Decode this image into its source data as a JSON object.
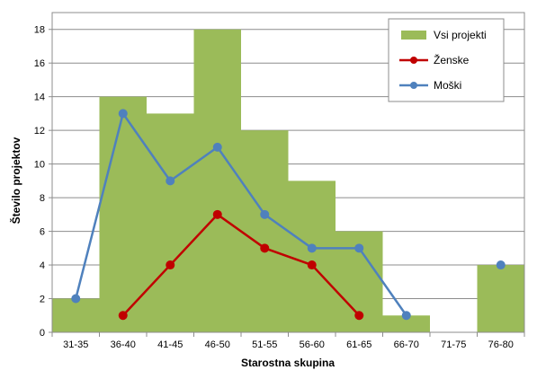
{
  "chart_data": {
    "type": "bar",
    "xlabel": "Starostna skupina",
    "ylabel": "Število projektov",
    "ylim": [
      0,
      19
    ],
    "yticks": [
      0,
      2,
      4,
      6,
      8,
      10,
      12,
      14,
      16,
      18
    ],
    "grid": true,
    "legend_position": "top-right",
    "categories": [
      "31-35",
      "36-40",
      "41-45",
      "46-50",
      "51-55",
      "56-60",
      "61-65",
      "66-70",
      "71-75",
      "76-80"
    ],
    "series": [
      {
        "name": "Vsi projekti",
        "kind": "bar",
        "color": "#9BBB59",
        "values": [
          2,
          14,
          13,
          18,
          12,
          9,
          6,
          1,
          0,
          4
        ]
      },
      {
        "name": "Ženske",
        "kind": "line",
        "color": "#C00000",
        "values": [
          null,
          1,
          4,
          7,
          5,
          4,
          1,
          null,
          null,
          null
        ]
      },
      {
        "name": "Moški",
        "kind": "line",
        "color": "#4F81BD",
        "values": [
          2,
          13,
          9,
          11,
          7,
          5,
          5,
          1,
          null,
          4
        ]
      }
    ]
  }
}
